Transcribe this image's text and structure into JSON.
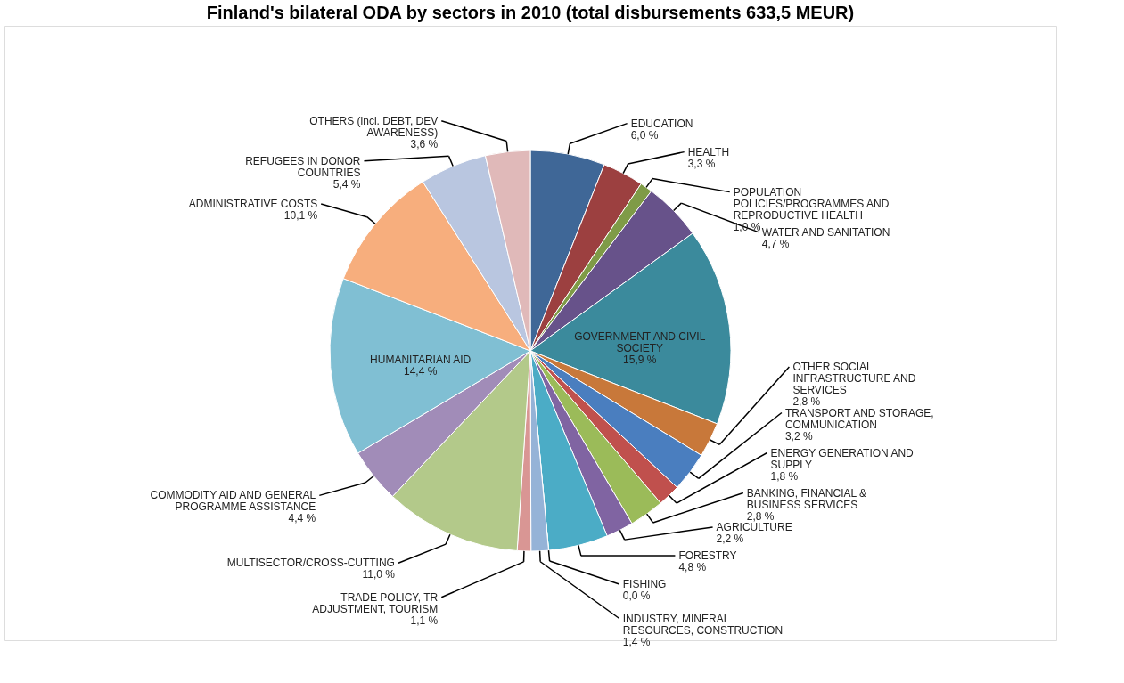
{
  "chart_data": {
    "type": "pie",
    "title": "Finland's bilateral ODA by sectors in 2010 (total disbursements 633,5 MEUR)",
    "categories": [
      "EDUCATION",
      "HEALTH",
      "POPULATION POLICIES/PROGRAMMES AND REPRODUCTIVE HEALTH",
      "WATER AND SANITATION",
      "GOVERNMENT AND CIVIL SOCIETY",
      "OTHER SOCIAL INFRASTRUCTURE AND SERVICES",
      "TRANSPORT AND STORAGE, COMMUNICATION",
      "ENERGY GENERATION AND SUPPLY",
      "BANKING, FINANCIAL & BUSINESS SERVICES",
      "AGRICULTURE",
      "FORESTRY",
      "FISHING",
      "INDUSTRY, MINERAL RESOURCES, CONSTRUCTION",
      "TRADE POLICY, TR ADJUSTMENT, TOURISM",
      "MULTISECTOR/CROSS-CUTTING",
      "COMMODITY AID AND GENERAL PROGRAMME ASSISTANCE",
      "HUMANITARIAN AID",
      "ADMINISTRATIVE COSTS",
      "REFUGEES IN DONOR COUNTRIES",
      "OTHERS (incl. DEBT, DEV AWARENESS)"
    ],
    "values": [
      6.0,
      3.3,
      1.0,
      4.7,
      15.9,
      2.8,
      3.2,
      1.8,
      2.8,
      2.2,
      4.8,
      0.0,
      1.4,
      1.1,
      11.0,
      4.4,
      14.4,
      10.1,
      5.4,
      3.6
    ],
    "value_labels": [
      "6,0 %",
      "3,3 %",
      "1,0 %",
      "4,7 %",
      "15,9 %",
      "2,8 %",
      "3,2 %",
      "1,8 %",
      "2,8 %",
      "2,2 %",
      "4,8 %",
      "0,0 %",
      "1,4 %",
      "1,1 %",
      "11,0 %",
      "4,4 %",
      "14,4 %",
      "10,1 %",
      "5,4 %",
      "3,6 %"
    ],
    "colors": [
      "#3f6797",
      "#9c4040",
      "#7f9b47",
      "#67528a",
      "#3b8a9c",
      "#c8783a",
      "#4a7ebf",
      "#c0504d",
      "#9bbb59",
      "#8064a2",
      "#4bacc6",
      "#f79646",
      "#95b3d7",
      "#d99694",
      "#b3c98a",
      "#a18cb8",
      "#80bfd3",
      "#f7ae7d",
      "#b9c6e0",
      "#e0b9b9"
    ],
    "legend": false
  }
}
